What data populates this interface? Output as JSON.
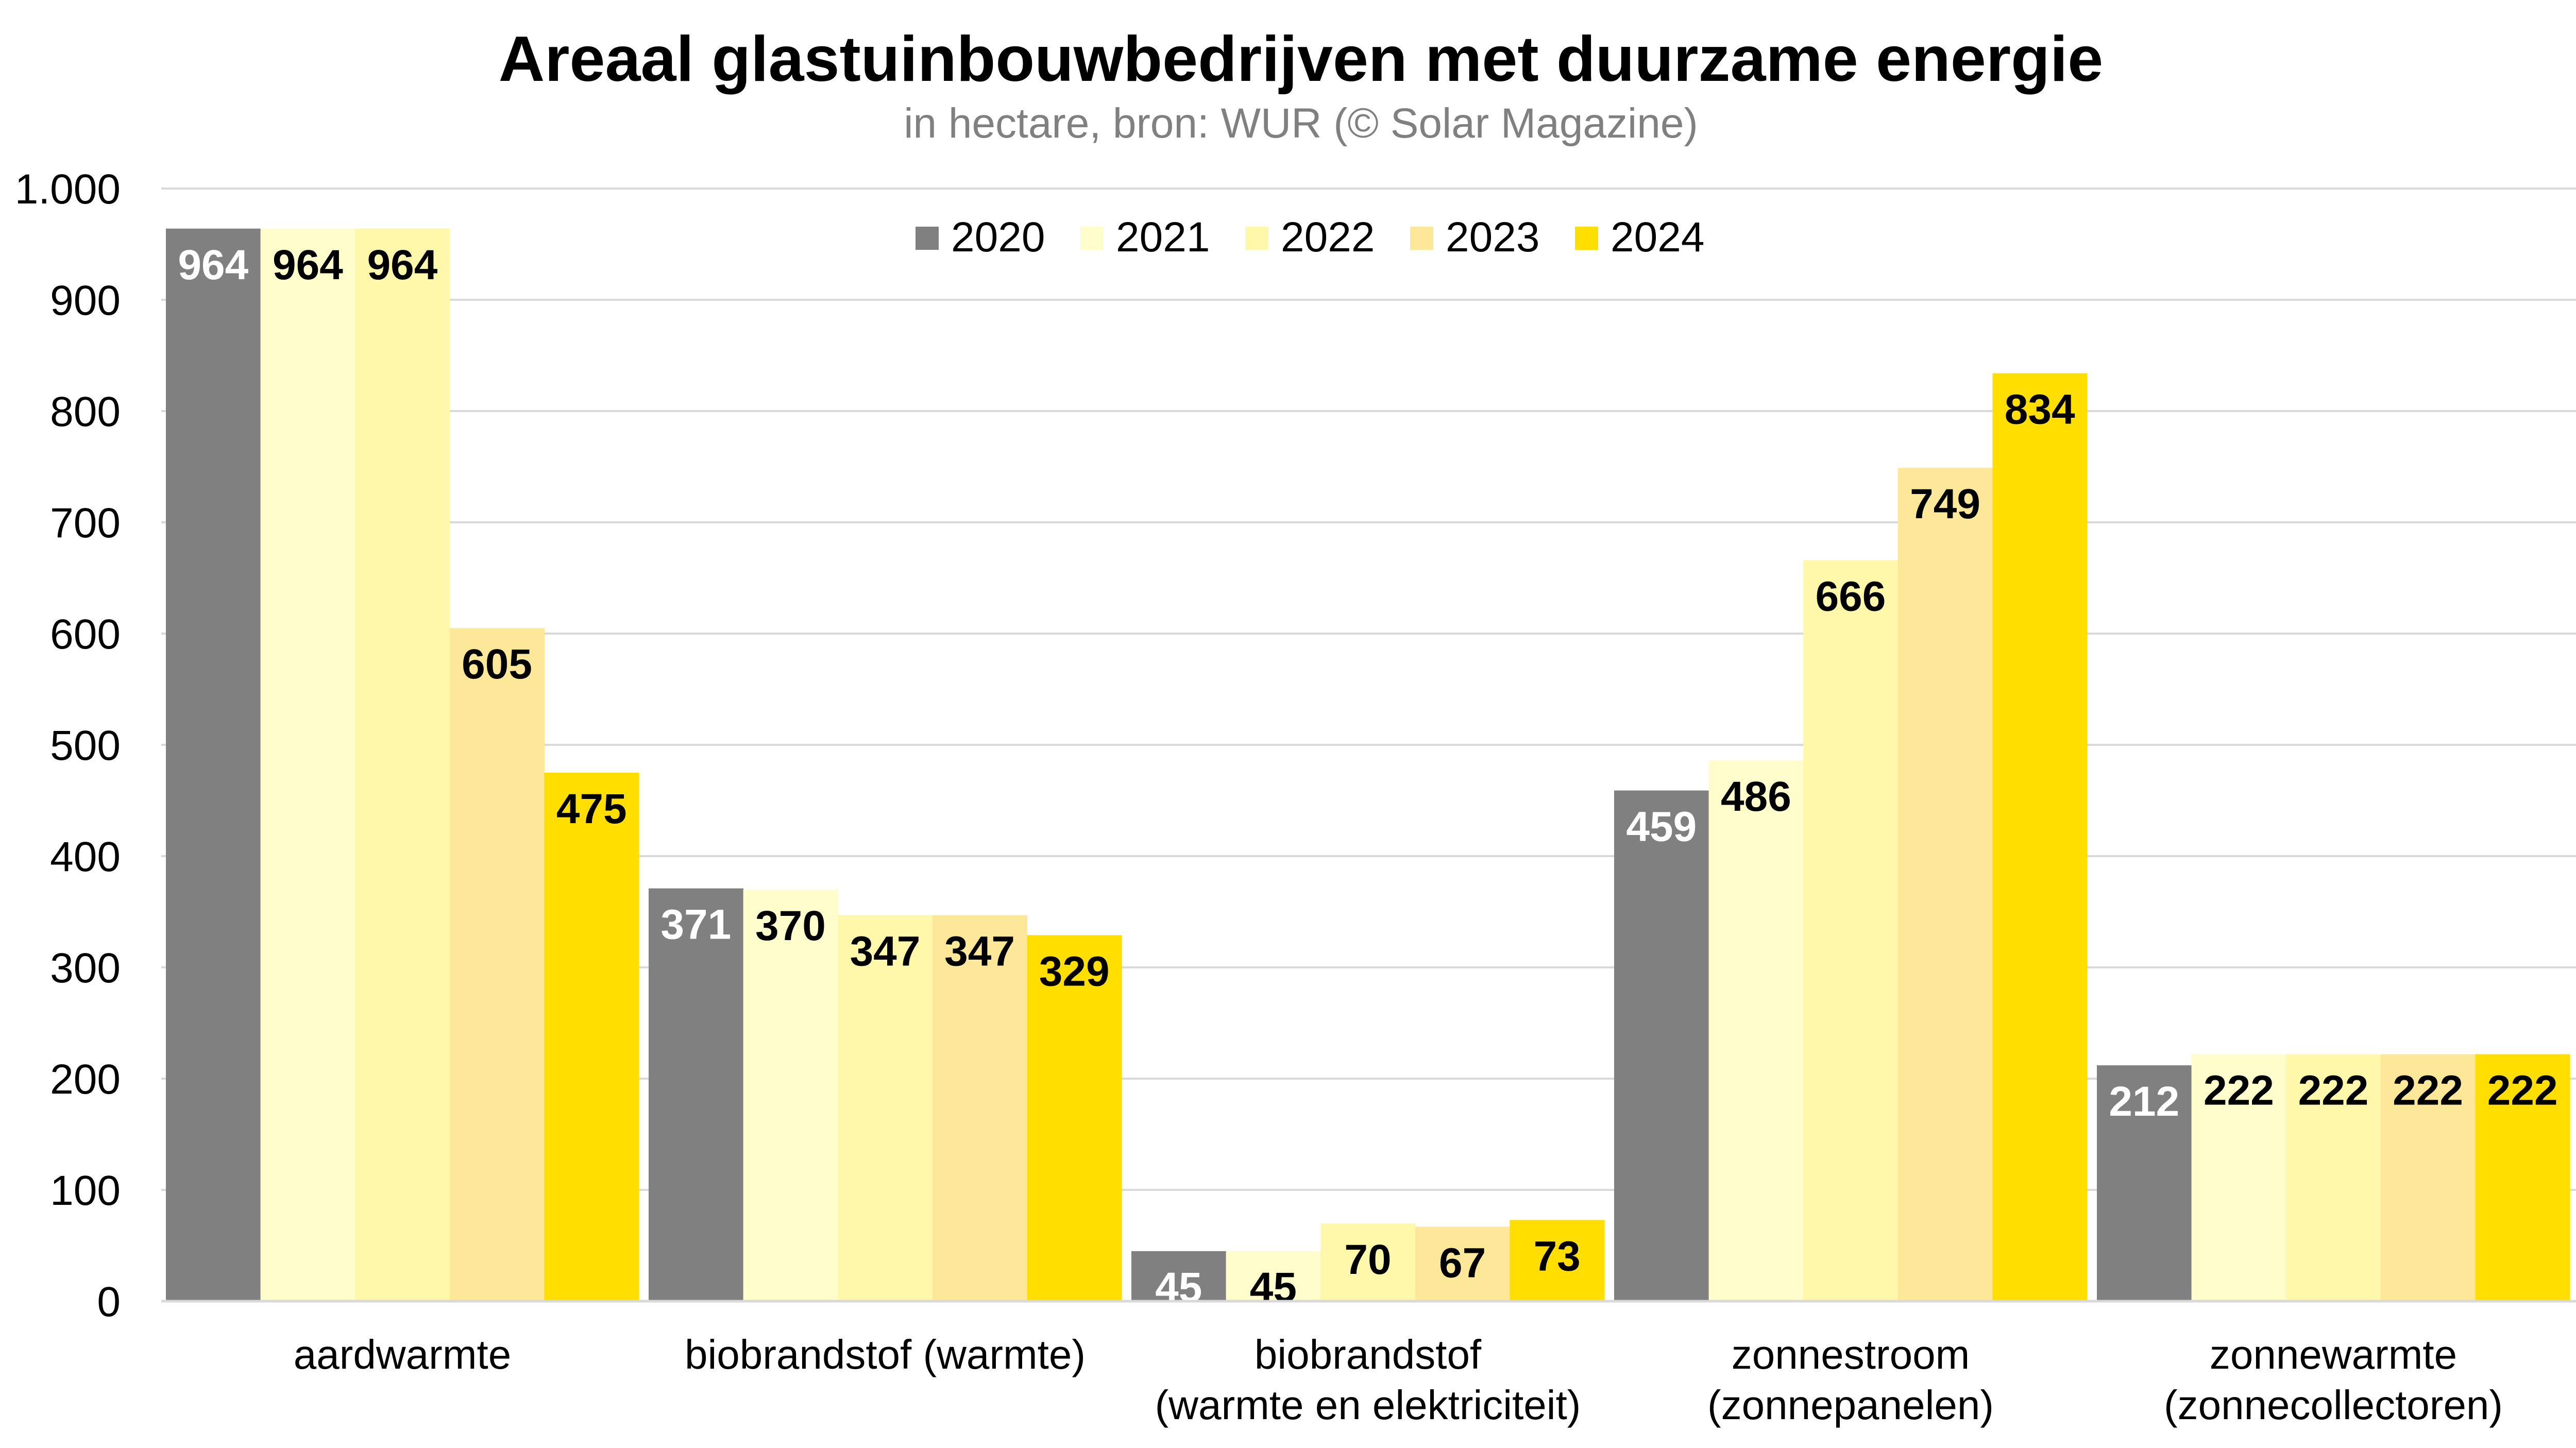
{
  "chart_data": {
    "type": "bar",
    "title": "Areaal glastuinbouwbedrijven met duurzame energie",
    "subtitle": "in hectare, bron: WUR (© Solar Magazine)",
    "xlabel": "",
    "ylabel": "",
    "ylim": [
      0,
      1000
    ],
    "yticks": [
      0,
      100,
      200,
      300,
      400,
      500,
      600,
      700,
      800,
      900,
      1000
    ],
    "ytick_labels": [
      "0",
      "100",
      "200",
      "300",
      "400",
      "500",
      "600",
      "700",
      "800",
      "900",
      "1.000"
    ],
    "grid": true,
    "legend_position": "top-center",
    "categories": [
      [
        "aardwarmte"
      ],
      [
        "biobrandstof (warmte)"
      ],
      [
        "biobrandstof",
        "(warmte en elektriciteit)"
      ],
      [
        "zonnestroom",
        "(zonnepanelen)"
      ],
      [
        "zonnewarmte",
        "(zonnecollectoren)"
      ]
    ],
    "series": [
      {
        "name": "2020",
        "color": "#808080",
        "label_color": "#ffffff",
        "values": [
          964,
          371,
          45,
          459,
          212
        ]
      },
      {
        "name": "2021",
        "color": "#fffdcc",
        "label_color": "#000000",
        "values": [
          964,
          370,
          45,
          486,
          222
        ]
      },
      {
        "name": "2022",
        "color": "#fff8aa",
        "label_color": "#000000",
        "values": [
          964,
          347,
          70,
          666,
          222
        ]
      },
      {
        "name": "2023",
        "color": "#fde89a",
        "label_color": "#000000",
        "values": [
          605,
          347,
          67,
          749,
          222
        ]
      },
      {
        "name": "2024",
        "color": "#ffde00",
        "label_color": "#000000",
        "values": [
          475,
          329,
          73,
          834,
          222
        ]
      }
    ]
  }
}
